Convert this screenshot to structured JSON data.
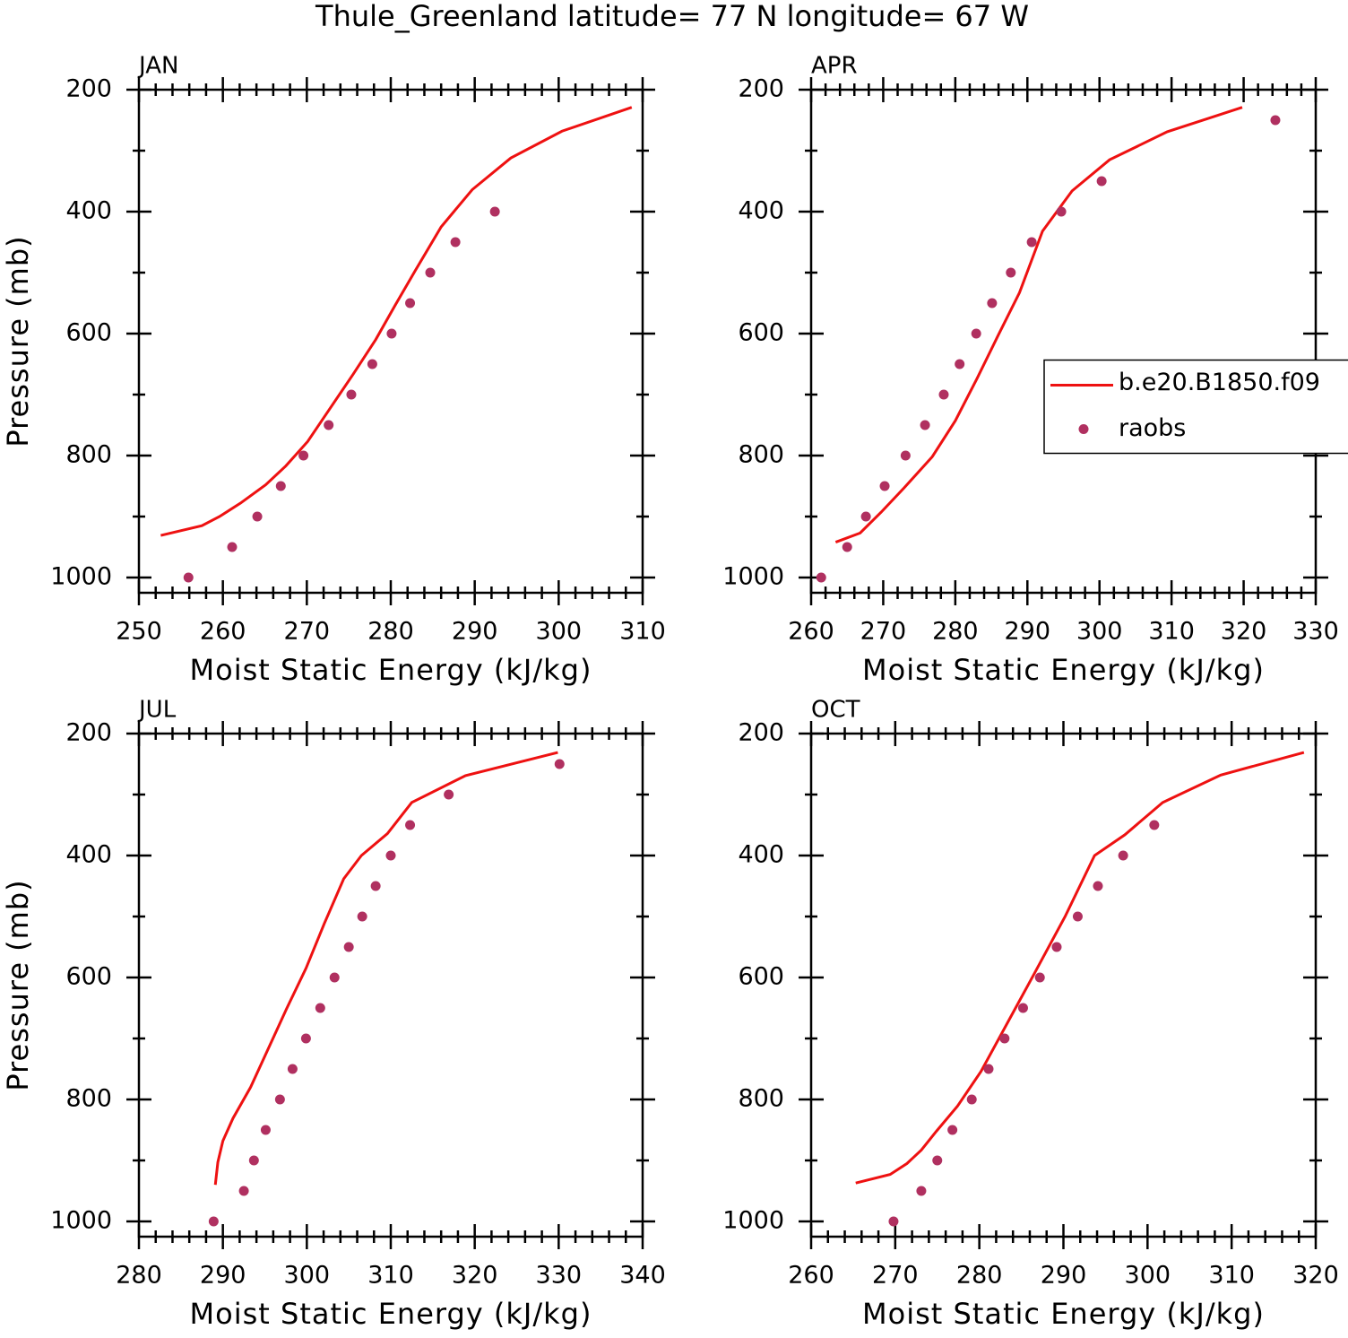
{
  "title": "Thule_Greenland  latitude= 77 N longitude= 67 W",
  "chart_data": [
    {
      "type": "line",
      "title": "JAN",
      "xlabel": "Moist Static Energy (kJ/kg)",
      "ylabel": "Pressure (mb)",
      "xlim": [
        250,
        310
      ],
      "xticks": [
        250,
        260,
        270,
        280,
        290,
        300,
        310
      ],
      "ylim": [
        1025,
        200
      ],
      "yticks": [
        200,
        400,
        600,
        800,
        1000
      ],
      "series": [
        {
          "style": "line",
          "color": "#ee1111",
          "x": [
            252.6,
            257.5,
            259.6,
            262.1,
            265.1,
            267.5,
            270.1,
            272.7,
            275.5,
            278.2,
            280.5,
            282.9,
            286.0,
            289.7,
            294.3,
            300.4,
            308.7
          ],
          "y": [
            931,
            915,
            900,
            878,
            848,
            817,
            777,
            724,
            667,
            610,
            554,
            497,
            425,
            364,
            312,
            268,
            229
          ]
        },
        {
          "style": "markers",
          "color": "#b03060",
          "x": [
            255.9,
            261.1,
            264.1,
            266.9,
            269.6,
            272.6,
            275.3,
            277.8,
            280.1,
            282.3,
            284.7,
            287.7,
            292.4
          ],
          "y": [
            1000,
            950,
            900,
            850,
            800,
            750,
            700,
            650,
            600,
            550,
            500,
            450,
            400
          ]
        }
      ]
    },
    {
      "type": "line",
      "title": "APR",
      "xlabel": "Moist Static Energy (kJ/kg)",
      "xlim": [
        260,
        330
      ],
      "xticks": [
        260,
        270,
        280,
        290,
        300,
        310,
        320,
        330
      ],
      "ylim": [
        1025,
        200
      ],
      "yticks": [
        200,
        400,
        600,
        800,
        1000
      ],
      "legend": "right",
      "series": [
        {
          "name": "b.e20.B1850.f09",
          "style": "line",
          "color": "#ee1111",
          "x": [
            263.4,
            266.8,
            269.7,
            272.9,
            276.8,
            280.0,
            283.0,
            285.9,
            288.9,
            292.1,
            296.2,
            301.4,
            309.4,
            319.8
          ],
          "y": [
            942,
            927,
            893,
            853,
            802,
            743,
            674,
            604,
            533,
            432,
            366,
            315,
            269,
            229
          ]
        },
        {
          "name": "raobs",
          "style": "markers",
          "color": "#b03060",
          "x": [
            261.4,
            265.0,
            267.6,
            270.2,
            273.1,
            275.8,
            278.4,
            280.6,
            282.9,
            285.1,
            287.7,
            290.6,
            294.7,
            300.3,
            324.4
          ],
          "y": [
            1000,
            950,
            900,
            850,
            800,
            750,
            700,
            650,
            600,
            550,
            500,
            450,
            400,
            350,
            250
          ]
        }
      ]
    },
    {
      "type": "line",
      "title": "JUL",
      "xlabel": "Moist Static Energy (kJ/kg)",
      "ylabel": "Pressure (mb)",
      "xlim": [
        280,
        340
      ],
      "xticks": [
        280,
        290,
        300,
        310,
        320,
        330,
        340
      ],
      "ylim": [
        1025,
        200
      ],
      "yticks": [
        200,
        400,
        600,
        800,
        1000
      ],
      "series": [
        {
          "style": "line",
          "color": "#ee1111",
          "x": [
            289.1,
            289.4,
            290.0,
            291.2,
            293.3,
            295.5,
            297.6,
            299.9,
            302.1,
            304.4,
            306.5,
            309.6,
            312.5,
            318.9,
            329.9
          ],
          "y": [
            940,
            903,
            868,
            831,
            780,
            714,
            651,
            585,
            511,
            438,
            400,
            364,
            313,
            269,
            231
          ]
        },
        {
          "style": "markers",
          "color": "#b03060",
          "x": [
            288.9,
            292.5,
            293.7,
            295.1,
            296.8,
            298.3,
            299.9,
            301.6,
            303.3,
            305.0,
            306.6,
            308.2,
            310.0,
            312.3,
            316.9,
            330.1
          ],
          "y": [
            1000,
            950,
            900,
            850,
            800,
            750,
            700,
            650,
            600,
            550,
            500,
            450,
            400,
            350,
            300,
            250
          ]
        }
      ]
    },
    {
      "type": "line",
      "title": "OCT",
      "xlabel": "Moist Static Energy (kJ/kg)",
      "xlim": [
        260,
        320
      ],
      "xticks": [
        260,
        270,
        280,
        290,
        300,
        310,
        320
      ],
      "ylim": [
        1025,
        200
      ],
      "yticks": [
        200,
        400,
        600,
        800,
        1000
      ],
      "series": [
        {
          "style": "line",
          "color": "#ee1111",
          "x": [
            265.3,
            269.4,
            271.4,
            273.1,
            274.9,
            277.4,
            280.2,
            283.4,
            286.6,
            290.2,
            293.7,
            297.3,
            301.8,
            308.7,
            318.6
          ],
          "y": [
            937,
            923,
            905,
            883,
            852,
            811,
            754,
            673,
            592,
            500,
            400,
            366,
            313,
            268,
            231
          ]
        },
        {
          "style": "markers",
          "color": "#b03060",
          "x": [
            269.8,
            273.1,
            275.0,
            276.8,
            279.1,
            281.1,
            283.0,
            285.2,
            287.2,
            289.2,
            291.7,
            294.1,
            297.1,
            300.8
          ],
          "y": [
            1000,
            950,
            900,
            850,
            800,
            750,
            700,
            650,
            600,
            550,
            500,
            450,
            400,
            350
          ]
        }
      ]
    }
  ]
}
